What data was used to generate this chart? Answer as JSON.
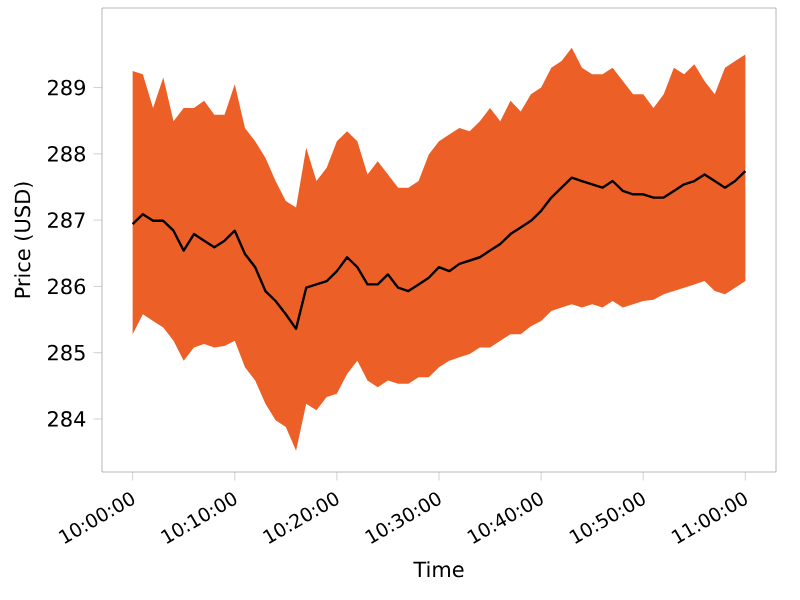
{
  "chart_data": {
    "type": "line",
    "xlabel": "Time",
    "ylabel": "Price (USD)",
    "x": [
      10,
      10.0167,
      10.0333,
      10.05,
      10.0667,
      10.0833,
      10.1,
      10.1167,
      10.1333,
      10.15,
      10.1667,
      10.1833,
      10.2,
      10.2167,
      10.2333,
      10.25,
      10.2667,
      10.2833,
      10.3,
      10.3167,
      10.3333,
      10.35,
      10.3667,
      10.3833,
      10.4,
      10.4167,
      10.4333,
      10.45,
      10.4667,
      10.4833,
      10.5,
      10.5167,
      10.5333,
      10.55,
      10.5667,
      10.5833,
      10.6,
      10.6167,
      10.6333,
      10.65,
      10.6667,
      10.6833,
      10.7,
      10.7167,
      10.7333,
      10.75,
      10.7667,
      10.7833,
      10.8,
      10.8167,
      10.8333,
      10.85,
      10.8667,
      10.8833,
      10.9,
      10.9167,
      10.9333,
      10.95,
      10.9667,
      10.9833,
      11
    ],
    "series": [
      {
        "color": "#000000",
        "values": [
          286.94,
          287.09,
          286.99,
          286.99,
          286.84,
          286.54,
          286.79,
          286.69,
          286.59,
          286.69,
          286.84,
          286.49,
          286.29,
          285.93,
          285.78,
          285.58,
          285.36,
          285.98,
          286.03,
          286.08,
          286.23,
          286.44,
          286.29,
          286.03,
          286.03,
          286.18,
          285.98,
          285.93,
          286.03,
          286.13,
          286.29,
          286.23,
          286.34,
          286.39,
          286.44,
          286.54,
          286.64,
          286.79,
          286.89,
          286.99,
          287.14,
          287.34,
          287.49,
          287.64,
          287.59,
          287.54,
          287.49,
          287.59,
          287.44,
          287.39,
          287.39,
          287.34,
          287.34,
          287.44,
          287.54,
          287.59,
          287.69,
          287.59,
          287.49,
          287.59,
          287.74
        ],
        "upper": [
          289.25,
          289.2,
          288.69,
          289.15,
          288.49,
          288.69,
          288.69,
          288.8,
          288.59,
          288.59,
          289.05,
          288.39,
          288.19,
          287.94,
          287.59,
          287.29,
          287.19,
          288.09,
          287.59,
          287.79,
          288.19,
          288.34,
          288.19,
          287.69,
          287.89,
          287.69,
          287.49,
          287.49,
          287.59,
          287.99,
          288.19,
          288.29,
          288.39,
          288.34,
          288.49,
          288.69,
          288.49,
          288.8,
          288.64,
          288.9,
          289.0,
          289.3,
          289.4,
          289.6,
          289.3,
          289.2,
          289.2,
          289.3,
          289.1,
          288.9,
          288.9,
          288.69,
          288.9,
          289.3,
          289.2,
          289.35,
          289.1,
          288.9,
          289.3,
          289.4,
          289.5
        ],
        "lower": [
          285.28,
          285.58,
          285.48,
          285.38,
          285.18,
          284.88,
          285.08,
          285.13,
          285.08,
          285.1,
          285.18,
          284.78,
          284.58,
          284.23,
          283.98,
          283.88,
          283.52,
          284.23,
          284.13,
          284.33,
          284.38,
          284.68,
          284.88,
          284.58,
          284.48,
          284.58,
          284.53,
          284.53,
          284.63,
          284.63,
          284.78,
          284.88,
          284.93,
          284.98,
          285.08,
          285.08,
          285.18,
          285.28,
          285.28,
          285.4,
          285.48,
          285.63,
          285.68,
          285.73,
          285.68,
          285.73,
          285.68,
          285.78,
          285.68,
          285.73,
          285.78,
          285.8,
          285.88,
          285.93,
          285.98,
          286.03,
          286.08,
          285.93,
          285.88,
          285.98,
          286.08
        ]
      }
    ],
    "xlim": [
      9.95,
      11.05
    ],
    "ylim": [
      283.2,
      290.2
    ],
    "xticks": [
      {
        "value": 10,
        "label": "10:00:00"
      },
      {
        "value": 10.1667,
        "label": "10:10:00"
      },
      {
        "value": 10.3333,
        "label": "10:20:00"
      },
      {
        "value": 10.5,
        "label": "10:30:00"
      },
      {
        "value": 10.6667,
        "label": "10:40:00"
      },
      {
        "value": 10.8333,
        "label": "10:50:00"
      },
      {
        "value": 11,
        "label": "11:00:00"
      }
    ],
    "yticks": [
      284,
      285,
      286,
      287,
      288,
      289
    ]
  }
}
